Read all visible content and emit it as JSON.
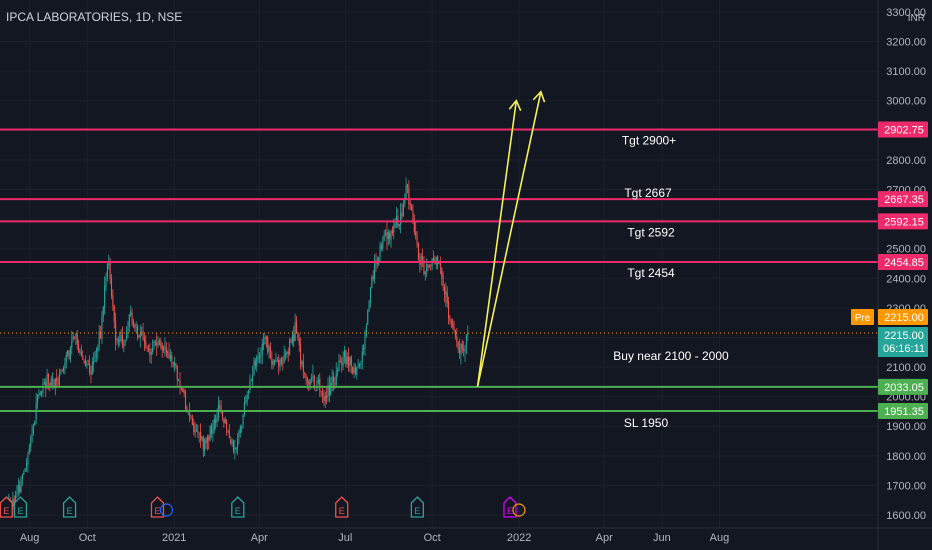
{
  "chart_data": {
    "type": "candlestick",
    "title": "IPCA LABORATORIES, 1D, NSE",
    "currency": "INR",
    "y_ticks": [
      1600,
      1700,
      1800,
      1900,
      2000,
      2100,
      2200,
      2300,
      2400,
      2500,
      2600,
      2700,
      2800,
      2900,
      3000,
      3100,
      3200,
      3300
    ],
    "y_tick_labels": [
      "1600.00",
      "1700.00",
      "1800.00",
      "1900.00",
      "2000.00",
      "2100.00",
      "2200.00",
      "2300.00",
      "2400.00",
      "2500.00",
      "2600.00",
      "2700.00",
      "2800.00",
      "2900.00",
      "3000.00",
      "3100.00",
      "3200.00",
      "3300.00"
    ],
    "ylim": [
      1590,
      3330
    ],
    "x_ticks": [
      {
        "label": "Aug",
        "day": 25
      },
      {
        "label": "Oct",
        "day": 86
      },
      {
        "label": "2021",
        "day": 178
      },
      {
        "label": "Apr",
        "day": 268
      },
      {
        "label": "Jul",
        "day": 359
      },
      {
        "label": "Oct",
        "day": 451
      },
      {
        "label": "2022",
        "day": 543
      },
      {
        "label": "Apr",
        "day": 633
      },
      {
        "label": "Jun",
        "day": 694
      },
      {
        "label": "Aug",
        "day": 755
      }
    ],
    "last_day": 490,
    "price_path": [
      [
        0,
        1620
      ],
      [
        10,
        1660
      ],
      [
        18,
        1720
      ],
      [
        26,
        1840
      ],
      [
        34,
        2000
      ],
      [
        44,
        2060
      ],
      [
        54,
        2040
      ],
      [
        62,
        2120
      ],
      [
        72,
        2200
      ],
      [
        80,
        2130
      ],
      [
        90,
        2100
      ],
      [
        100,
        2220
      ],
      [
        108,
        2460
      ],
      [
        116,
        2200
      ],
      [
        124,
        2180
      ],
      [
        132,
        2280
      ],
      [
        140,
        2220
      ],
      [
        150,
        2160
      ],
      [
        160,
        2190
      ],
      [
        170,
        2150
      ],
      [
        178,
        2100
      ],
      [
        186,
        2030
      ],
      [
        194,
        1920
      ],
      [
        202,
        1880
      ],
      [
        210,
        1840
      ],
      [
        218,
        1890
      ],
      [
        226,
        1960
      ],
      [
        234,
        1880
      ],
      [
        242,
        1820
      ],
      [
        250,
        1920
      ],
      [
        258,
        2060
      ],
      [
        266,
        2140
      ],
      [
        274,
        2190
      ],
      [
        282,
        2120
      ],
      [
        290,
        2110
      ],
      [
        298,
        2150
      ],
      [
        306,
        2230
      ],
      [
        314,
        2080
      ],
      [
        322,
        2060
      ],
      [
        330,
        2030
      ],
      [
        338,
        2000
      ],
      [
        346,
        2050
      ],
      [
        354,
        2120
      ],
      [
        362,
        2130
      ],
      [
        370,
        2080
      ],
      [
        378,
        2140
      ],
      [
        386,
        2380
      ],
      [
        394,
        2480
      ],
      [
        402,
        2540
      ],
      [
        410,
        2560
      ],
      [
        418,
        2620
      ],
      [
        424,
        2700
      ],
      [
        430,
        2610
      ],
      [
        436,
        2480
      ],
      [
        444,
        2420
      ],
      [
        452,
        2460
      ],
      [
        458,
        2460
      ],
      [
        466,
        2320
      ],
      [
        472,
        2230
      ],
      [
        480,
        2140
      ],
      [
        486,
        2170
      ],
      [
        490,
        2215
      ]
    ],
    "levels": [
      {
        "value": 2902.75,
        "label": "2902.75",
        "note": "Tgt 2900+",
        "color": "#ef2a6b"
      },
      {
        "value": 2667.35,
        "label": "2667.35",
        "note": "Tgt 2667",
        "color": "#ef2a6b"
      },
      {
        "value": 2592.15,
        "label": "2592.15",
        "note": "Tgt 2592",
        "color": "#ef2a6b"
      },
      {
        "value": 2454.85,
        "label": "2454.85",
        "note": "Tgt 2454",
        "color": "#ef2a6b"
      },
      {
        "value": 2033.05,
        "label": "2033.05",
        "note": "Buy near 2100 - 2000",
        "color": "#4caf50"
      },
      {
        "value": 1951.35,
        "label": "1951.35",
        "note": "SL 1950",
        "color": "#4caf50"
      }
    ],
    "current_price": {
      "value": 2215.0,
      "label": "2215.00",
      "countdown": "06:16:11",
      "color": "#26a69a"
    },
    "pre_price": {
      "tag": "Pre",
      "value": 2215.0,
      "label": "2215.00",
      "color": "#ff9800"
    },
    "arrows": [
      {
        "from": {
          "day": 499,
          "price": 2034
        },
        "to": {
          "day": 540,
          "price": 3000
        }
      },
      {
        "from": {
          "day": 499,
          "price": 2034
        },
        "to": {
          "day": 566,
          "price": 3030
        }
      }
    ],
    "events": [
      {
        "day": 10,
        "label": "E",
        "kind": "earnings-future"
      },
      {
        "day": 62,
        "label": "E",
        "kind": "earnings-future"
      },
      {
        "day": 155,
        "label": "E",
        "kind": "earnings-past"
      },
      {
        "day": 240,
        "label": "E",
        "kind": "earnings-future"
      },
      {
        "day": 350,
        "label": "E",
        "kind": "earnings-past"
      },
      {
        "day": 430,
        "label": "E",
        "kind": "earnings-future"
      },
      {
        "day": 528,
        "label": "E",
        "kind": "earnings-current"
      },
      {
        "day": -5,
        "label": "E",
        "kind": "earnings-past"
      }
    ],
    "colors": {
      "up": "#26a69a",
      "down": "#ef5350",
      "background": "#131722",
      "text": "#d1d4dc",
      "arrow": "#f5f05a",
      "axis_text": "#b2b5be"
    }
  }
}
